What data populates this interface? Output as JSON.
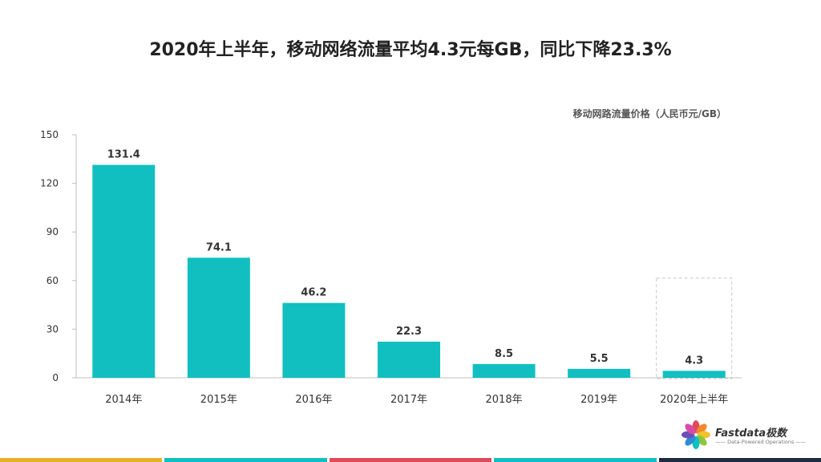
{
  "slide": {
    "title": "2020年上半年，移动网络流量平均4.3元每GB，同比下降23.3%",
    "logo_name": "Fastdata极数",
    "logo_tagline": "—— Data-Powered Operations ——"
  },
  "chart_data": {
    "type": "bar",
    "title": "",
    "unit_label": "移动网路流量价格（人民币元/GB）",
    "xlabel": "",
    "ylabel": "",
    "categories": [
      "2014年",
      "2015年",
      "2016年",
      "2017年",
      "2018年",
      "2019年",
      "2020年上半年"
    ],
    "values": [
      131.4,
      74.1,
      46.2,
      22.3,
      8.5,
      5.5,
      4.3
    ],
    "value_labels": [
      "131.4",
      "74.1",
      "46.2",
      "22.3",
      "8.5",
      "5.5",
      "4.3"
    ],
    "ylim": [
      0,
      150
    ],
    "yticks": [
      0,
      30,
      60,
      90,
      120,
      150
    ],
    "grid": false,
    "highlight_category": "2020年上半年",
    "colors": {
      "bar": "#12BFC0",
      "axis": "#BFBFBF",
      "label": "#333333",
      "highlight_box": "#C8C8C8"
    }
  },
  "footer": {
    "colors": [
      "#E8B02A",
      "#12BFC0",
      "#E04B5A",
      "#12BFC0",
      "#1F2A44"
    ]
  }
}
